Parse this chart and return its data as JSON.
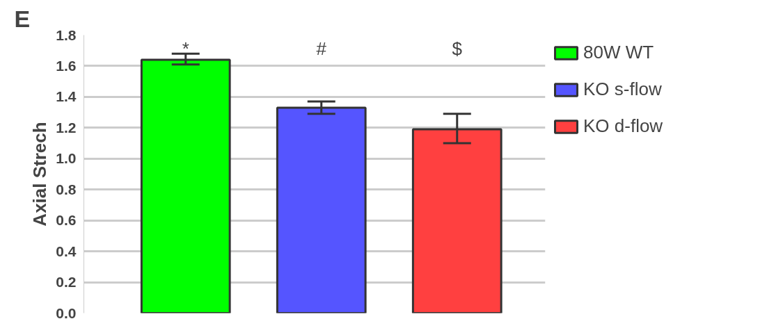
{
  "chart_data": {
    "type": "bar",
    "title": "E",
    "ylabel": "Axial Strech",
    "categories": [
      null,
      null,
      null
    ],
    "series": [
      {
        "name": "80W WT",
        "color": "#00ff00",
        "values": [
          1.64,
          null,
          null
        ],
        "errors": [
          [
            1.61,
            1.68
          ],
          null,
          null
        ]
      },
      {
        "name": "KO s-flow",
        "color": "#5555ff",
        "values": [
          null,
          1.33,
          null
        ],
        "errors": [
          null,
          [
            1.29,
            1.37
          ],
          null
        ]
      },
      {
        "name": "KO d-flow",
        "color": "#ff4040",
        "values": [
          null,
          null,
          1.19
        ],
        "errors": [
          null,
          null,
          [
            1.1,
            1.29
          ]
        ]
      }
    ],
    "ylim": [
      0,
      1.8
    ],
    "yticks": [
      {
        "value": 0,
        "label": "0.0"
      },
      0.2,
      0.4,
      0.6,
      0.8,
      {
        "value": 1,
        "label": "1.0"
      },
      1.2,
      1.4,
      1.6,
      1.8
    ],
    "annotations": [
      "*",
      "#",
      "$"
    ],
    "grid": "y",
    "legend": "right"
  }
}
